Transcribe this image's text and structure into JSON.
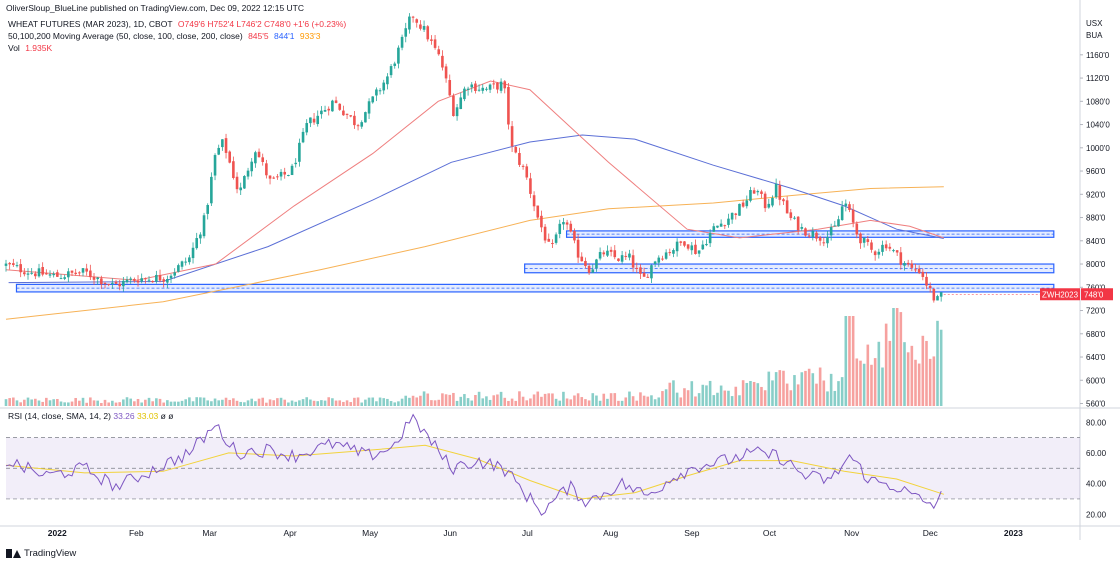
{
  "publisher": "OliverSloup_BlueLine published on TradingView.com, Dec 09, 2022 12:15 UTC",
  "header": {
    "symbol": "WHEAT FUTURES (MAR 2023), 1D, CBOT",
    "ohlc": "O749'6 H752'4 L746'2 C748'0 +1'6 (+0.23%)",
    "ma_label": "50,100,200 Moving Average (50, close, 100, close, 200, close)",
    "ma50": "845'5",
    "ma100": "844'1",
    "ma200": "933'3",
    "vol_label": "Vol",
    "vol_value": "1.935K"
  },
  "rsi_header": {
    "label": "RSI (14, close, SMA, 14, 2)",
    "rsi": "33.26",
    "sma": "33.03",
    "extra": "ø ø"
  },
  "footer": {
    "brand": "TradingView"
  },
  "colors": {
    "up": "#26a69a",
    "down": "#ef5350",
    "ma50": "#ef7f7f",
    "ma100": "#5b6fd6",
    "ma200": "#f7b256",
    "zone": "#2962ff",
    "rsi": "#7e57c2",
    "rsi_sma": "#f2d33c",
    "tag": "#f23645"
  },
  "chart_data": [
    {
      "type": "candlestick",
      "title": "WHEAT FUTURES (MAR 2023), 1D, CBOT",
      "currency": "USX",
      "unit": "BUA",
      "y_ticks": [
        "1160'0",
        "1120'0",
        "1080'0",
        "1040'0",
        "1000'0",
        "960'0",
        "920'0",
        "880'0",
        "840'0",
        "800'0",
        "760'0",
        "720'0",
        "680'0",
        "640'0",
        "600'0",
        "560'0"
      ],
      "y_tick_values": [
        1160,
        1120,
        1080,
        1040,
        1000,
        960,
        920,
        880,
        840,
        800,
        760,
        720,
        680,
        640,
        600,
        560
      ],
      "ylim": [
        554,
        1244
      ],
      "x_ticks": [
        "2022",
        "Feb",
        "Mar",
        "Apr",
        "May",
        "Jun",
        "Jul",
        "Aug",
        "Sep",
        "Oct",
        "Nov",
        "Dec",
        "2023"
      ],
      "x_tick_days": [
        19,
        50,
        78,
        109,
        139,
        170,
        200,
        231,
        262,
        292,
        323,
        353,
        384
      ],
      "x_start": "2021-12-01",
      "last_price_tag": {
        "symbol": "ZWH2023",
        "value": "748'0",
        "price": 748
      },
      "key_points": [
        {
          "day": 0,
          "price": 798
        },
        {
          "day": 9,
          "price": 787
        },
        {
          "day": 19,
          "price": 779
        },
        {
          "day": 30,
          "price": 786
        },
        {
          "day": 41,
          "price": 763
        },
        {
          "day": 50,
          "price": 775
        },
        {
          "day": 61,
          "price": 777
        },
        {
          "day": 70,
          "price": 810
        },
        {
          "day": 76,
          "price": 880
        },
        {
          "day": 80,
          "price": 990
        },
        {
          "day": 83,
          "price": 1010
        },
        {
          "day": 89,
          "price": 920
        },
        {
          "day": 95,
          "price": 1000
        },
        {
          "day": 101,
          "price": 940
        },
        {
          "day": 109,
          "price": 960
        },
        {
          "day": 115,
          "price": 1040
        },
        {
          "day": 125,
          "price": 1080
        },
        {
          "day": 134,
          "price": 1040
        },
        {
          "day": 141,
          "price": 1090
        },
        {
          "day": 146,
          "price": 1125
        },
        {
          "day": 151,
          "price": 1180
        },
        {
          "day": 155,
          "price": 1230
        },
        {
          "day": 160,
          "price": 1200
        },
        {
          "day": 166,
          "price": 1150
        },
        {
          "day": 171,
          "price": 1060
        },
        {
          "day": 176,
          "price": 1110
        },
        {
          "day": 183,
          "price": 1100
        },
        {
          "day": 190,
          "price": 1110
        },
        {
          "day": 193,
          "price": 1000
        },
        {
          "day": 198,
          "price": 960
        },
        {
          "day": 203,
          "price": 880
        },
        {
          "day": 208,
          "price": 820
        },
        {
          "day": 213,
          "price": 880
        },
        {
          "day": 218,
          "price": 820
        },
        {
          "day": 223,
          "price": 790
        },
        {
          "day": 228,
          "price": 820
        },
        {
          "day": 233,
          "price": 810
        },
        {
          "day": 238,
          "price": 810
        },
        {
          "day": 243,
          "price": 770
        },
        {
          "day": 248,
          "price": 810
        },
        {
          "day": 254,
          "price": 825
        },
        {
          "day": 259,
          "price": 840
        },
        {
          "day": 264,
          "price": 820
        },
        {
          "day": 270,
          "price": 860
        },
        {
          "day": 276,
          "price": 880
        },
        {
          "day": 281,
          "price": 900
        },
        {
          "day": 286,
          "price": 930
        },
        {
          "day": 290,
          "price": 900
        },
        {
          "day": 294,
          "price": 930
        },
        {
          "day": 299,
          "price": 880
        },
        {
          "day": 304,
          "price": 860
        },
        {
          "day": 309,
          "price": 850
        },
        {
          "day": 313,
          "price": 845
        },
        {
          "day": 317,
          "price": 865
        },
        {
          "day": 320,
          "price": 910
        },
        {
          "day": 325,
          "price": 850
        },
        {
          "day": 331,
          "price": 820
        },
        {
          "day": 336,
          "price": 835
        },
        {
          "day": 341,
          "price": 810
        },
        {
          "day": 346,
          "price": 790
        },
        {
          "day": 349,
          "price": 790
        },
        {
          "day": 352,
          "price": 760
        },
        {
          "day": 355,
          "price": 735
        },
        {
          "day": 358,
          "price": 748
        }
      ],
      "moving_averages": {
        "ma50": [
          {
            "day": 0,
            "price": 790
          },
          {
            "day": 50,
            "price": 772
          },
          {
            "day": 80,
            "price": 800
          },
          {
            "day": 110,
            "price": 900
          },
          {
            "day": 140,
            "price": 990
          },
          {
            "day": 165,
            "price": 1080
          },
          {
            "day": 185,
            "price": 1115
          },
          {
            "day": 200,
            "price": 1100
          },
          {
            "day": 230,
            "price": 975
          },
          {
            "day": 260,
            "price": 860
          },
          {
            "day": 280,
            "price": 845
          },
          {
            "day": 310,
            "price": 860
          },
          {
            "day": 330,
            "price": 875
          },
          {
            "day": 345,
            "price": 865
          },
          {
            "day": 358,
            "price": 845
          }
        ],
        "ma100": [
          {
            "day": 1,
            "price": 768
          },
          {
            "day": 60,
            "price": 770
          },
          {
            "day": 100,
            "price": 830
          },
          {
            "day": 140,
            "price": 910
          },
          {
            "day": 170,
            "price": 975
          },
          {
            "day": 200,
            "price": 1010
          },
          {
            "day": 220,
            "price": 1022
          },
          {
            "day": 240,
            "price": 1015
          },
          {
            "day": 270,
            "price": 970
          },
          {
            "day": 300,
            "price": 930
          },
          {
            "day": 320,
            "price": 900
          },
          {
            "day": 340,
            "price": 860
          },
          {
            "day": 358,
            "price": 844
          }
        ],
        "ma200": [
          {
            "day": 0,
            "price": 705
          },
          {
            "day": 60,
            "price": 735
          },
          {
            "day": 120,
            "price": 790
          },
          {
            "day": 160,
            "price": 830
          },
          {
            "day": 200,
            "price": 875
          },
          {
            "day": 230,
            "price": 895
          },
          {
            "day": 270,
            "price": 905
          },
          {
            "day": 300,
            "price": 918
          },
          {
            "day": 330,
            "price": 930
          },
          {
            "day": 358,
            "price": 933
          }
        ]
      },
      "zones": [
        {
          "start_day": 4,
          "end_day": 400,
          "low": 752,
          "high": 765
        },
        {
          "start_day": 198,
          "end_day": 400,
          "low": 785,
          "high": 800
        },
        {
          "start_day": 214,
          "end_day": 400,
          "low": 846,
          "high": 857
        }
      ]
    },
    {
      "type": "bar",
      "title": "Vol",
      "value_label": "1.935K",
      "note": "volume bars rising sharply in November-December"
    },
    {
      "type": "line",
      "title": "RSI (14, close, SMA, 14, 2)",
      "y_ticks": [
        "80.00",
        "60.00",
        "40.00",
        "20.00"
      ],
      "y_tick_values": [
        80,
        60,
        40,
        20
      ],
      "ylim": [
        13,
        88
      ],
      "bands": {
        "upper": 70,
        "middle": 50,
        "lower": 30
      },
      "rsi": [
        {
          "day": 0,
          "v": 55
        },
        {
          "day": 15,
          "v": 45
        },
        {
          "day": 30,
          "v": 50
        },
        {
          "day": 42,
          "v": 38
        },
        {
          "day": 55,
          "v": 48
        },
        {
          "day": 70,
          "v": 60
        },
        {
          "day": 80,
          "v": 78
        },
        {
          "day": 88,
          "v": 60
        },
        {
          "day": 100,
          "v": 62
        },
        {
          "day": 110,
          "v": 58
        },
        {
          "day": 125,
          "v": 66
        },
        {
          "day": 138,
          "v": 58
        },
        {
          "day": 148,
          "v": 64
        },
        {
          "day": 155,
          "v": 84
        },
        {
          "day": 162,
          "v": 68
        },
        {
          "day": 170,
          "v": 50
        },
        {
          "day": 180,
          "v": 55
        },
        {
          "day": 190,
          "v": 50
        },
        {
          "day": 200,
          "v": 30
        },
        {
          "day": 205,
          "v": 22
        },
        {
          "day": 215,
          "v": 38
        },
        {
          "day": 222,
          "v": 28
        },
        {
          "day": 235,
          "v": 40
        },
        {
          "day": 245,
          "v": 32
        },
        {
          "day": 255,
          "v": 45
        },
        {
          "day": 265,
          "v": 52
        },
        {
          "day": 275,
          "v": 55
        },
        {
          "day": 285,
          "v": 60
        },
        {
          "day": 295,
          "v": 58
        },
        {
          "day": 305,
          "v": 45
        },
        {
          "day": 315,
          "v": 42
        },
        {
          "day": 322,
          "v": 58
        },
        {
          "day": 330,
          "v": 42
        },
        {
          "day": 340,
          "v": 38
        },
        {
          "day": 348,
          "v": 30
        },
        {
          "day": 354,
          "v": 26
        },
        {
          "day": 358,
          "v": 33.26
        }
      ],
      "sma": [
        {
          "day": 0,
          "v": 52
        },
        {
          "day": 30,
          "v": 47
        },
        {
          "day": 60,
          "v": 48
        },
        {
          "day": 85,
          "v": 60
        },
        {
          "day": 110,
          "v": 58
        },
        {
          "day": 140,
          "v": 62
        },
        {
          "day": 160,
          "v": 65
        },
        {
          "day": 180,
          "v": 56
        },
        {
          "day": 200,
          "v": 42
        },
        {
          "day": 220,
          "v": 30
        },
        {
          "day": 240,
          "v": 34
        },
        {
          "day": 260,
          "v": 45
        },
        {
          "day": 280,
          "v": 55
        },
        {
          "day": 300,
          "v": 55
        },
        {
          "day": 320,
          "v": 48
        },
        {
          "day": 340,
          "v": 43
        },
        {
          "day": 358,
          "v": 33.03
        }
      ]
    }
  ]
}
